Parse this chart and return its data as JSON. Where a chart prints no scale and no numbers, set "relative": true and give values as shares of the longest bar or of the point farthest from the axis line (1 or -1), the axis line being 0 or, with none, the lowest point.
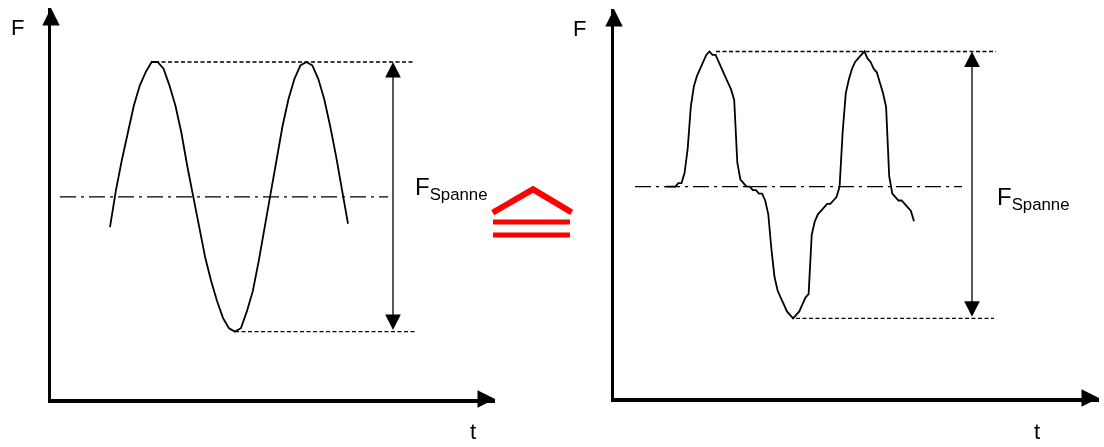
{
  "chart_data": [
    {
      "type": "line",
      "relative": true,
      "xlabel": "t",
      "ylabel": "F",
      "categories": [
        null,
        null,
        null,
        null,
        null,
        null,
        null,
        null,
        null,
        null,
        null,
        null,
        null,
        null,
        null,
        null,
        null,
        null,
        null,
        null,
        null,
        null,
        null,
        null,
        null,
        null,
        null,
        null,
        null,
        null,
        null,
        null,
        null,
        null,
        null,
        null,
        null,
        null,
        null,
        null,
        null
      ],
      "series": [
        {
          "color": "#000000",
          "values": [
            0.51,
            0.62,
            0.71,
            0.79,
            0.87,
            0.93,
            0.97,
            1.0,
            1.0,
            0.98,
            0.93,
            0.87,
            0.79,
            0.69,
            0.6,
            0.51,
            0.42,
            0.35,
            0.29,
            0.24,
            0.21,
            0.2,
            0.21,
            0.26,
            0.32,
            0.41,
            0.51,
            0.61,
            0.71,
            0.81,
            0.89,
            0.95,
            0.99,
            1.0,
            0.99,
            0.95,
            0.89,
            0.81,
            0.72,
            0.62,
            0.52
          ]
        }
      ],
      "ref_lines": [
        {
          "axis": "y",
          "value": 1.0,
          "line_style": "dashed"
        },
        {
          "axis": "y",
          "value": 0.2,
          "line_style": "dashed"
        },
        {
          "axis": "y",
          "value": 0.6,
          "line_style": "dashdot"
        }
      ],
      "annotations": [
        "F$_{Spanne}$"
      ]
    },
    {
      "type": "line",
      "relative": true,
      "xlabel": "t",
      "ylabel": "F",
      "categories": [
        null,
        null,
        null,
        null,
        null,
        null,
        null,
        null,
        null,
        null,
        null,
        null,
        null,
        null,
        null,
        null,
        null,
        null,
        null,
        null,
        null,
        null,
        null,
        null,
        null,
        null,
        null,
        null,
        null,
        null,
        null,
        null,
        null,
        null,
        null,
        null,
        null,
        null,
        null,
        null,
        null,
        null,
        null,
        null,
        null,
        null,
        null,
        null,
        null,
        null,
        null,
        null,
        null,
        null,
        null,
        null,
        null,
        null,
        null,
        null,
        null,
        null,
        null,
        null,
        null,
        null,
        null,
        null,
        null,
        null,
        null,
        null,
        null,
        null,
        null,
        null,
        null,
        null,
        null,
        null,
        null
      ],
      "series": [
        {
          "color": "#000000",
          "values": [
            0.61,
            0.61,
            0.61,
            0.61,
            0.62,
            0.62,
            0.65,
            0.72,
            0.84,
            0.9,
            0.93,
            0.95,
            0.97,
            0.99,
            1.0,
            0.99,
            0.99,
            0.97,
            0.95,
            0.93,
            0.91,
            0.89,
            0.86,
            0.68,
            0.63,
            0.62,
            0.61,
            0.61,
            0.6,
            0.6,
            0.59,
            0.59,
            0.57,
            0.53,
            0.43,
            0.35,
            0.31,
            0.29,
            0.27,
            0.25,
            0.24,
            0.23,
            0.24,
            0.25,
            0.27,
            0.29,
            0.3,
            0.47,
            0.51,
            0.53,
            0.54,
            0.55,
            0.56,
            0.56,
            0.57,
            0.58,
            0.61,
            0.77,
            0.88,
            0.92,
            0.95,
            0.97,
            0.98,
            0.99,
            1.0,
            0.98,
            0.97,
            0.95,
            0.94,
            0.91,
            0.88,
            0.84,
            0.64,
            0.59,
            0.58,
            0.57,
            0.57,
            0.56,
            0.55,
            0.54,
            0.51
          ]
        }
      ],
      "ref_lines": [
        {
          "axis": "y",
          "value": 1.0,
          "line_style": "dashed"
        },
        {
          "axis": "y",
          "value": 0.23,
          "line_style": "dashed"
        },
        {
          "axis": "y",
          "value": 0.61,
          "line_style": "dashdot"
        }
      ],
      "annotations": [
        "F$_{Spanne}$"
      ]
    }
  ]
}
